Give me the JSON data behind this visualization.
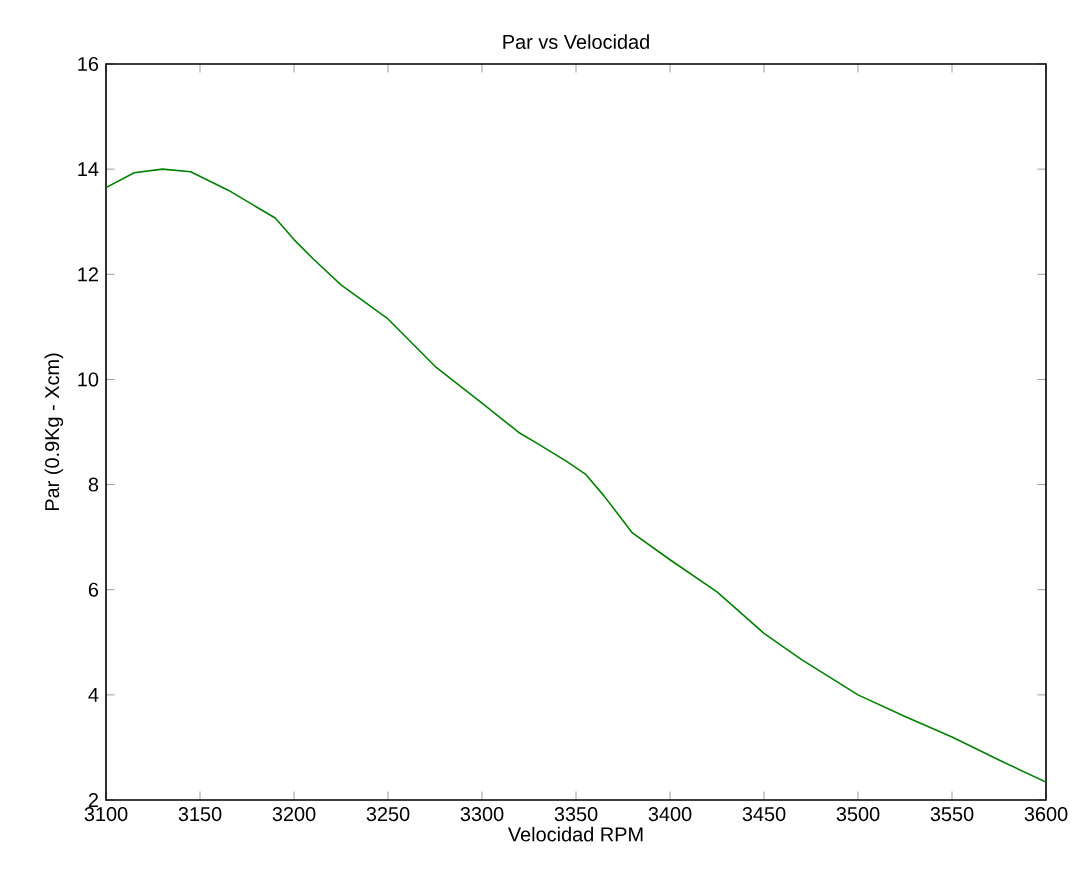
{
  "chart_data": {
    "type": "line",
    "title": "Par vs Velocidad",
    "xlabel": "Velocidad RPM",
    "ylabel": "Par (0.9Kg - Xcm)",
    "x": [
      3100,
      3115,
      3130,
      3145,
      3165,
      3190,
      3200,
      3210,
      3225,
      3250,
      3275,
      3300,
      3320,
      3330,
      3345,
      3355,
      3365,
      3380,
      3400,
      3425,
      3450,
      3470,
      3500,
      3525,
      3550,
      3575,
      3600
    ],
    "series": [
      {
        "color": "#008000",
        "values": [
          13.65,
          13.93,
          14.0,
          13.95,
          13.6,
          13.07,
          12.66,
          12.3,
          11.8,
          11.15,
          10.25,
          9.55,
          8.98,
          8.77,
          8.44,
          8.2,
          7.78,
          7.08,
          6.57,
          5.96,
          5.17,
          4.67,
          4.0,
          3.59,
          3.2,
          2.76,
          2.34
        ]
      }
    ],
    "xlim": [
      3100,
      3600
    ],
    "xticks": [
      3100,
      3150,
      3200,
      3250,
      3300,
      3350,
      3400,
      3450,
      3500,
      3550,
      3600
    ],
    "ylim": [
      2,
      16
    ],
    "yticks": [
      2,
      4,
      6,
      8,
      10,
      12,
      14,
      16
    ],
    "grid": false,
    "marker": "none",
    "line_style": "solid"
  }
}
